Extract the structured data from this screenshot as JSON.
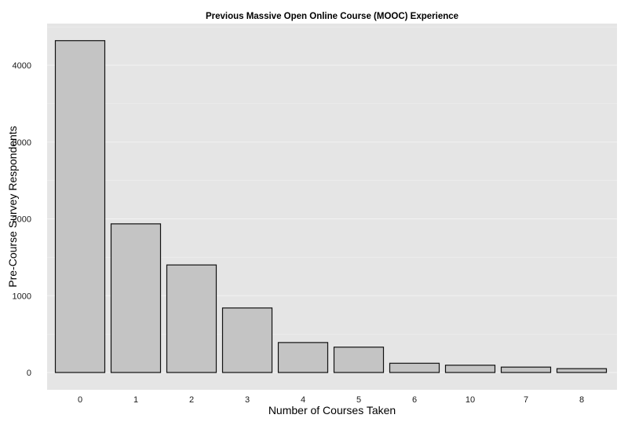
{
  "chart_data": {
    "type": "bar",
    "title": "Previous Massive Open Online Course (MOOC) Experience",
    "xlabel": "Number of Courses Taken",
    "ylabel": "Pre-Course Survey Respondents",
    "categories": [
      "0",
      "1",
      "2",
      "3",
      "4",
      "5",
      "6",
      "10",
      "7",
      "8"
    ],
    "values": [
      4320,
      1935,
      1400,
      840,
      390,
      330,
      120,
      95,
      70,
      50
    ],
    "ylim": [
      0,
      4500
    ],
    "yticks": [
      0,
      1000,
      2000,
      3000,
      4000
    ],
    "grid": true,
    "legend": "none",
    "colors": {
      "panel_background": "#e5e5e5",
      "grid": "#f2f2f2",
      "bar_fill": "#c4c4c4",
      "bar_stroke": "#111111"
    }
  }
}
